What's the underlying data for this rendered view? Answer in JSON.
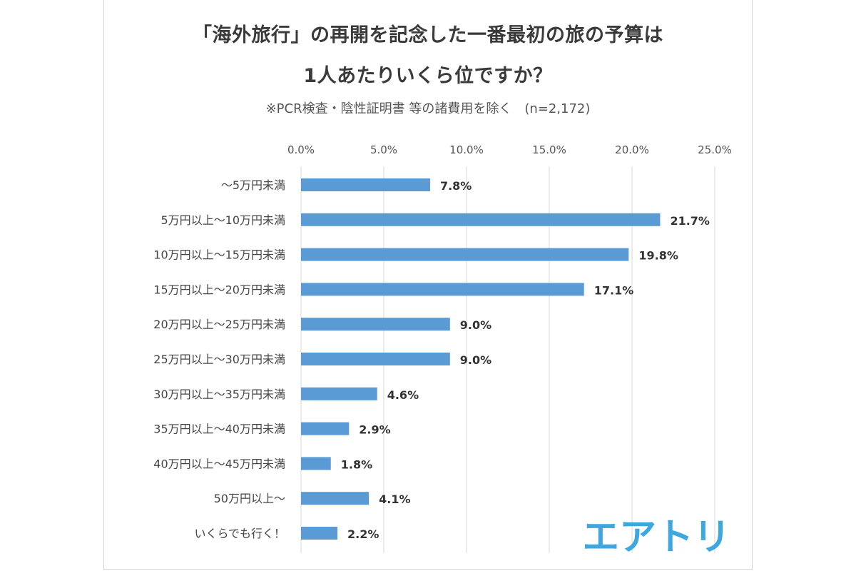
{
  "title_line1": "「海外旅行」の再開を記念した一番最初の旅の予算は",
  "title_line2": "1人あたりいくら位ですか？",
  "subtitle": "※PCR検査・陰性証明書 等の諸費用を除く　(n=2,172)",
  "logo_text": "エアトリ",
  "colors": {
    "bar": "#5b9bd5",
    "gridline": "#d9d9d9",
    "logo": "#3fa7e0"
  },
  "chart_data": {
    "type": "bar",
    "orientation": "horizontal",
    "categories": [
      "～5万円未満",
      "5万円以上～10万円未満",
      "10万円以上～15万円未満",
      "15万円以上～20万円未満",
      "20万円以上～25万円未満",
      "25万円以上～30万円未満",
      "30万円以上～35万円未満",
      "35万円以上～40万円未満",
      "40万円以上～45万円未満",
      "50万円以上～",
      "いくらでも行く！"
    ],
    "values": [
      7.8,
      21.7,
      19.8,
      17.1,
      9.0,
      9.0,
      4.6,
      2.9,
      1.8,
      4.1,
      2.2
    ],
    "value_labels": [
      "7.8%",
      "21.7%",
      "19.8%",
      "17.1%",
      "9.0%",
      "9.0%",
      "4.6%",
      "2.9%",
      "1.8%",
      "4.1%",
      "2.2%"
    ],
    "xticks": [
      "0.0%",
      "5.0%",
      "10.0%",
      "15.0%",
      "20.0%",
      "25.0%"
    ],
    "xlim": [
      0,
      25
    ],
    "axis_position": "top",
    "grid": true,
    "legend": "none"
  }
}
